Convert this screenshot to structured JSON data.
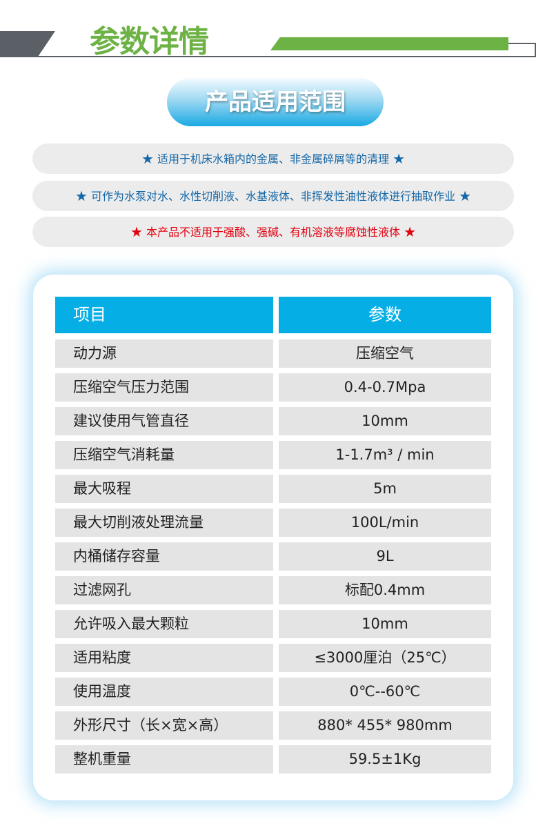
{
  "header": {
    "title": "参数详情",
    "scope_title": "产品适用范围"
  },
  "notes": [
    {
      "text": "适用于机床水箱内的金属、非金属碎屑等的清理",
      "color": "#1467a8"
    },
    {
      "text": "可作为水泵对水、水性切削液、水基液体、非挥发性油性液体进行抽取作业",
      "color": "#1467a8"
    },
    {
      "text": "本产品不适用于强酸、强碱、有机溶液等腐蚀性液体",
      "color": "#e3000f"
    }
  ],
  "star": "★",
  "table": {
    "headers": [
      "项目",
      "参数"
    ],
    "rows": [
      [
        "动力源",
        "压缩空气"
      ],
      [
        "压缩空气压力范围",
        "0.4-0.7Mpa"
      ],
      [
        "建议使用气管直径",
        "10mm"
      ],
      [
        "压缩空气消耗量",
        "1-1.7m³ / min"
      ],
      [
        "最大吸程",
        "5m"
      ],
      [
        "最大切削液处理流量",
        "100L/min"
      ],
      [
        "内桶储存容量",
        "9L"
      ],
      [
        "过滤网孔",
        "标配0.4mm"
      ],
      [
        "允许吸入最大颗粒",
        "10mm"
      ],
      [
        "适用粘度",
        "≤3000厘泊（25℃）"
      ],
      [
        "使用温度",
        "0℃--60℃"
      ],
      [
        "外形尺寸（长×宽×高）",
        "880* 455* 980mm"
      ],
      [
        "整机重量",
        "59.5±1Kg"
      ]
    ]
  },
  "colors": {
    "green": "#6db244",
    "blue": "#06aee6",
    "dark": "#5a6066"
  }
}
